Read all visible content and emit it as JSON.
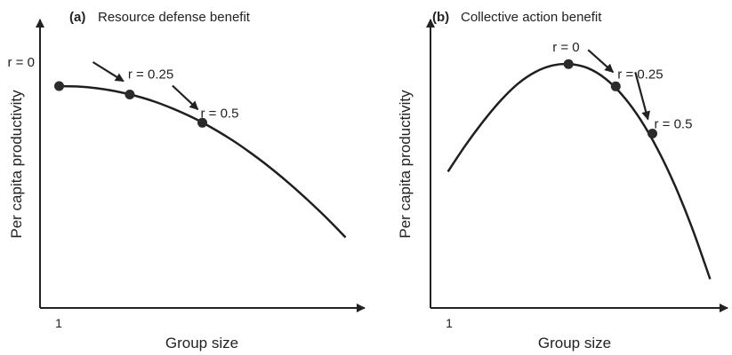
{
  "colors": {
    "ink": "#222222",
    "curve": "#1f1f1f",
    "marker": "#2b2b2b",
    "background": "#ffffff"
  },
  "chart_data": [
    {
      "type": "line",
      "panel_tag": "(a)",
      "title": "Resource defense benefit",
      "xlabel": "Group size",
      "ylabel": "Per capita productivity",
      "x_ticks": [
        "1"
      ],
      "grid": false,
      "legend": "none",
      "curve": {
        "x": [
          1,
          2,
          3,
          4,
          5,
          6,
          7,
          8,
          9,
          10,
          11,
          12,
          13,
          14,
          15,
          16
        ],
        "y": [
          1.0,
          0.998,
          0.99,
          0.976,
          0.956,
          0.93,
          0.897,
          0.858,
          0.812,
          0.76,
          0.701,
          0.636,
          0.565,
          0.488,
          0.406,
          0.318
        ]
      },
      "points": [
        {
          "label": "r = 0",
          "x": 1,
          "y": 1.0
        },
        {
          "label": "r = 0.25",
          "x": 4.7,
          "y": 0.962
        },
        {
          "label": "r = 0.5",
          "x": 8.5,
          "y": 0.835
        }
      ],
      "arrows": [
        {
          "from": "r = 0",
          "to": "r = 0.25"
        },
        {
          "from": "r = 0.25",
          "to": "r = 0.5"
        }
      ],
      "xlim": [
        0,
        17
      ],
      "ylim": [
        0,
        1.3
      ]
    },
    {
      "type": "line",
      "panel_tag": "(b)",
      "title": "Collective action benefit",
      "xlabel": "Group size",
      "ylabel": "Per capita productivity",
      "x_ticks": [
        "1"
      ],
      "grid": false,
      "legend": "none",
      "curve": {
        "x": [
          1,
          2,
          3,
          4,
          5,
          6,
          7,
          8,
          9,
          10,
          11,
          12,
          13,
          14,
          15,
          16
        ],
        "y": [
          0.52,
          0.62,
          0.71,
          0.79,
          0.855,
          0.9,
          0.925,
          0.93,
          0.915,
          0.875,
          0.81,
          0.72,
          0.605,
          0.465,
          0.3,
          0.11
        ]
      },
      "points": [
        {
          "label": "r = 0",
          "x": 7.9,
          "y": 0.93
        },
        {
          "label": "r = 0.25",
          "x": 10.6,
          "y": 0.845
        },
        {
          "label": "r = 0.5",
          "x": 12.7,
          "y": 0.665
        }
      ],
      "arrows": [
        {
          "from": "r = 0",
          "to": "r = 0.25"
        },
        {
          "from": "r = 0.25",
          "to": "r = 0.5"
        }
      ],
      "xlim": [
        0,
        17
      ],
      "ylim": [
        0,
        1.1
      ]
    }
  ]
}
